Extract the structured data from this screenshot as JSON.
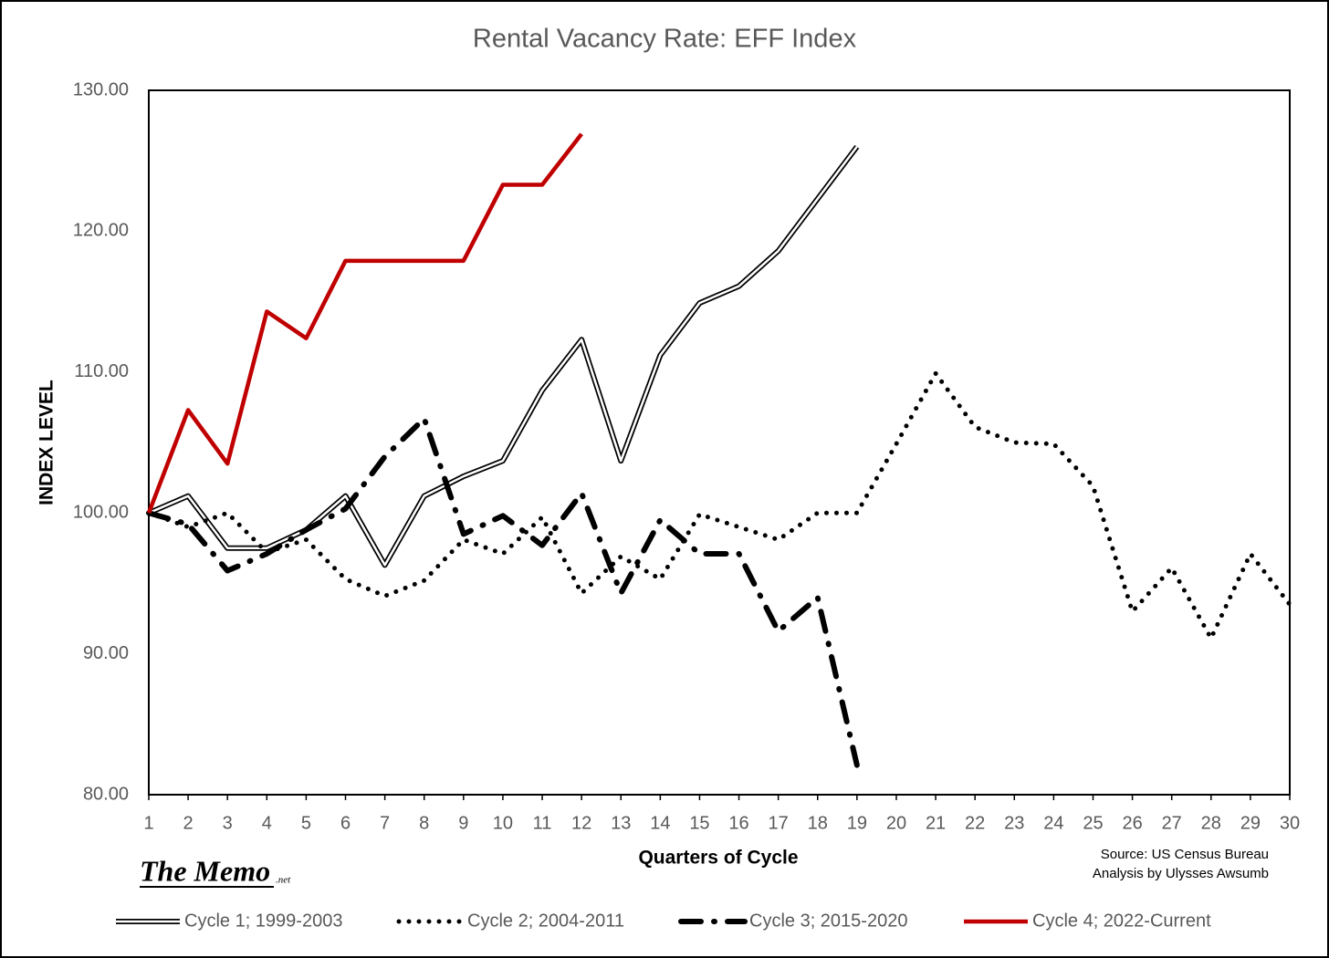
{
  "chart_data": {
    "type": "line",
    "title": "Rental Vacancy Rate: EFF  Index",
    "y_label": "INDEX LEVEL",
    "x_label": "Quarters of Cycle",
    "source": [
      "Source: US Census Bureau",
      "Analysis by Ulysses Awsumb"
    ],
    "logo": "The Memo",
    "logo_suffix": ".net",
    "x": [
      1,
      2,
      3,
      4,
      5,
      6,
      7,
      8,
      9,
      10,
      11,
      12,
      13,
      14,
      15,
      16,
      17,
      18,
      19,
      20,
      21,
      22,
      23,
      24,
      25,
      26,
      27,
      28,
      29,
      30
    ],
    "xlim": [
      1,
      30
    ],
    "xticks": [
      1,
      2,
      3,
      4,
      5,
      6,
      7,
      8,
      9,
      10,
      11,
      12,
      13,
      14,
      15,
      16,
      17,
      18,
      19,
      20,
      21,
      22,
      23,
      24,
      25,
      26,
      27,
      28,
      29,
      30
    ],
    "ylim": [
      80,
      130
    ],
    "yticks": [
      {
        "value": 80,
        "label": "80.00"
      },
      {
        "value": 90,
        "label": "90.00"
      },
      {
        "value": 100,
        "label": "100.00"
      },
      {
        "value": 110,
        "label": "110.00"
      },
      {
        "value": 120,
        "label": "120.00"
      },
      {
        "value": 130,
        "label": "130.00"
      }
    ],
    "series": [
      {
        "name": "Cycle 1; 1999-2003",
        "color": "#000000",
        "style": "double",
        "values": [
          100,
          101.2,
          97.5,
          97.5,
          98.8,
          101.2,
          96.3,
          101.2,
          102.6,
          103.7,
          108.7,
          112.3,
          103.7,
          111.2,
          114.9,
          116.1,
          118.6,
          122.3,
          126.0,
          null,
          null,
          null,
          null,
          null,
          null,
          null,
          null,
          null,
          null,
          null
        ]
      },
      {
        "name": "Cycle 2; 2004-2011",
        "color": "#000000",
        "style": "dotted",
        "values": [
          100,
          99.0,
          100,
          97.2,
          98.1,
          95.3,
          94.1,
          95.2,
          98.1,
          97.1,
          99.7,
          94.3,
          96.9,
          95.3,
          99.9,
          99.0,
          98.1,
          100,
          100,
          104.9,
          109.9,
          106.1,
          105.0,
          104.9,
          101.9,
          93.0,
          96.1,
          91.1,
          97.1,
          93.5
        ]
      },
      {
        "name": "Cycle 3; 2015-2020",
        "color": "#000000",
        "style": "dashdot",
        "values": [
          100,
          99.2,
          95.9,
          97.1,
          98.8,
          100.3,
          104.0,
          106.7,
          98.5,
          99.8,
          97.7,
          101.4,
          94.3,
          99.5,
          97.1,
          97.1,
          91.6,
          94.0,
          82.1,
          null,
          null,
          null,
          null,
          null,
          null,
          null,
          null,
          null,
          null,
          null
        ]
      },
      {
        "name": "Cycle 4; 2022-Current",
        "color": "#c00000",
        "style": "solid",
        "values": [
          100,
          107.3,
          103.5,
          114.3,
          112.4,
          117.9,
          117.9,
          117.9,
          117.9,
          123.3,
          123.3,
          126.9,
          null,
          null,
          null,
          null,
          null,
          null,
          null,
          null,
          null,
          null,
          null,
          null,
          null,
          null,
          null,
          null,
          null,
          null
        ]
      }
    ]
  }
}
